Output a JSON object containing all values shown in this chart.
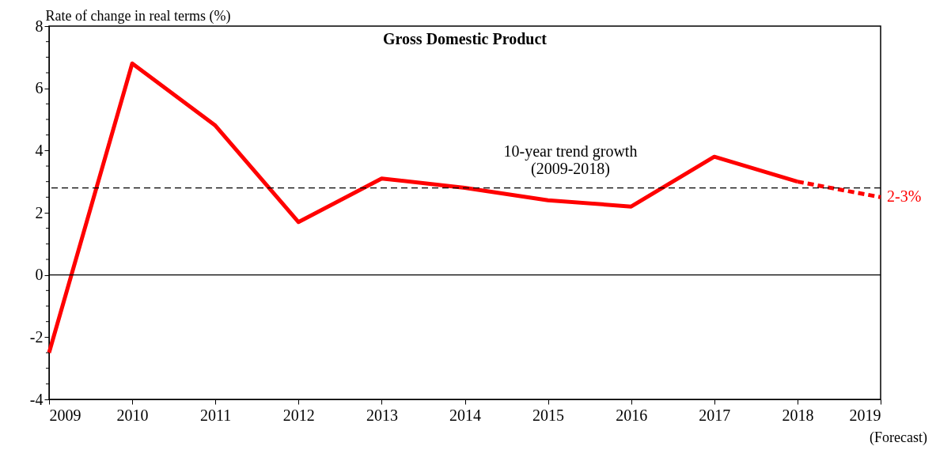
{
  "chart_data": {
    "type": "line",
    "title": "Gross Domestic Product",
    "ylabel": "Rate of change in real terms (%)",
    "x": [
      2009,
      2010,
      2011,
      2012,
      2013,
      2014,
      2015,
      2016,
      2017,
      2018
    ],
    "series": [
      {
        "color": "#ff0000",
        "values": [
          -2.5,
          6.8,
          4.8,
          1.7,
          3.1,
          2.8,
          2.4,
          2.2,
          3.8,
          3.0
        ],
        "line_style": "solid"
      },
      {
        "name": "2-3%",
        "color": "#ff0000",
        "x": [
          2018,
          2019
        ],
        "values": [
          3.0,
          2.5
        ],
        "line_style": "dashed"
      }
    ],
    "xlim": [
      2009,
      2019
    ],
    "xticks": [
      2009,
      2010,
      2011,
      2012,
      2013,
      2014,
      2015,
      2016,
      2017,
      2018,
      2019
    ],
    "ylim": [
      -4,
      8
    ],
    "yticks": [
      -4,
      {
        "value": -3.5,
        "label": null
      },
      {
        "value": -3,
        "label": null
      },
      {
        "value": -2.5,
        "label": null
      },
      -2,
      {
        "value": -1.5,
        "label": null
      },
      {
        "value": -1,
        "label": null
      },
      {
        "value": -0.5,
        "label": null
      },
      0,
      {
        "value": 0.5,
        "label": null
      },
      {
        "value": 1,
        "label": null
      },
      {
        "value": 1.5,
        "label": null
      },
      2,
      {
        "value": 2.5,
        "label": null
      },
      {
        "value": 3,
        "label": null
      },
      {
        "value": 3.5,
        "label": null
      },
      4,
      {
        "value": 4.5,
        "label": null
      },
      {
        "value": 5,
        "label": null
      },
      {
        "value": 5.5,
        "label": null
      },
      6,
      {
        "value": 6.5,
        "label": null
      },
      {
        "value": 7,
        "label": null
      },
      {
        "value": 7.5,
        "label": null
      },
      8
    ],
    "ref_lines": [
      {
        "axis": "y",
        "value": 2.8,
        "label": "10-year trend growth\n(2009-2018)",
        "line_style": "dashed",
        "color": "#000000"
      },
      {
        "axis": "y",
        "value": 0,
        "line_style": "solid",
        "color": "#000000"
      }
    ],
    "annotations": [
      "(Forecast)"
    ],
    "grid": false,
    "marker": "none"
  }
}
